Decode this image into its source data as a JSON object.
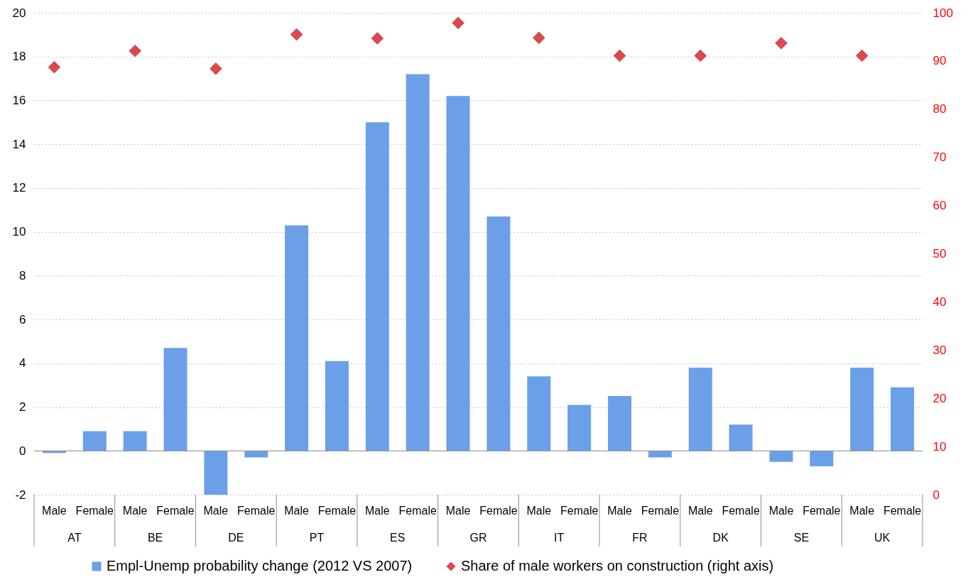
{
  "chart_data": {
    "type": "bar",
    "categories": [
      "Male",
      "Female",
      "Male",
      "Female",
      "Male",
      "Female",
      "Male",
      "Female",
      "Male",
      "Female",
      "Male",
      "Female",
      "Male",
      "Female",
      "Male",
      "Female",
      "Male",
      "Female",
      "Male",
      "Female",
      "Male",
      "Female"
    ],
    "series": [
      {
        "name": "Empl-Unemp probability change (2012 VS 2007)",
        "type": "bar",
        "color": "#6b9fe8",
        "values": [
          -0.1,
          0.9,
          0.9,
          4.7,
          -2.0,
          -0.3,
          10.3,
          4.1,
          15.0,
          17.2,
          16.2,
          10.7,
          3.4,
          2.1,
          2.5,
          -0.3,
          3.8,
          1.2,
          -0.5,
          -0.7,
          3.8,
          2.9
        ]
      },
      {
        "name": "Share of male workers on construction (right axis)",
        "type": "scatter",
        "axis": "y2",
        "color": "#e0474c",
        "marker": "diamond",
        "values": [
          88.7,
          null,
          92.1,
          null,
          88.4,
          null,
          95.5,
          null,
          94.7,
          null,
          97.9,
          null,
          94.8,
          null,
          91.1,
          null,
          91.1,
          null,
          93.7,
          null,
          91.1,
          null
        ]
      }
    ],
    "ylim": [
      -2,
      20
    ],
    "yticks": [
      -2,
      0,
      2,
      4,
      6,
      8,
      10,
      12,
      14,
      16,
      18,
      20
    ],
    "y2lim": [
      0,
      100
    ],
    "y2ticks": [
      0,
      10,
      20,
      30,
      40,
      50,
      60,
      70,
      80,
      90,
      100
    ],
    "grid": "y",
    "legend": "bottom",
    "ref_lines": [
      {
        "axis": "y",
        "value": 0,
        "color": "#8c8c8c"
      }
    ],
    "annotations": [
      "AT",
      "BE",
      "DE",
      "PT",
      "ES",
      "GR",
      "IT",
      "FR",
      "DK",
      "SE",
      "UK"
    ]
  }
}
